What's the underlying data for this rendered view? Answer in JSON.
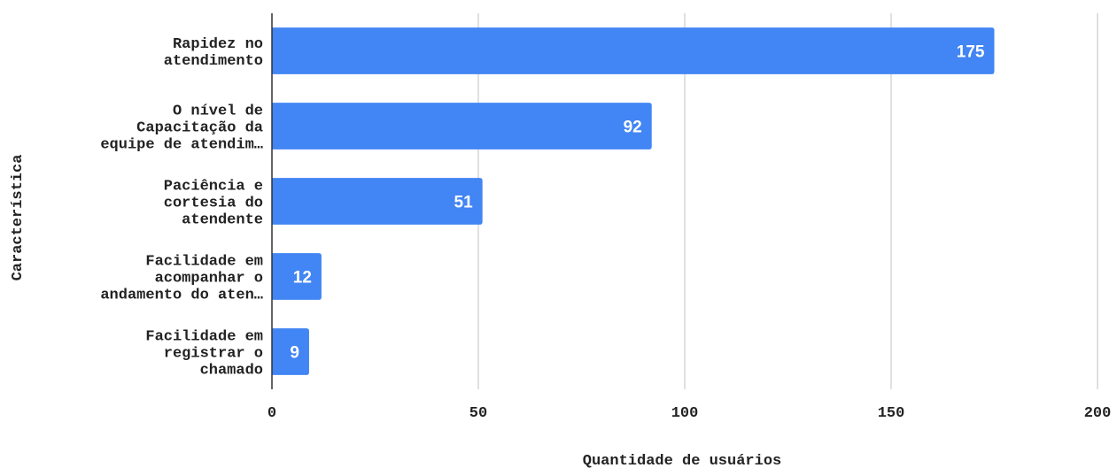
{
  "chart_data": {
    "type": "bar",
    "orientation": "horizontal",
    "categories": [
      [
        "Rapidez no",
        "atendimento"
      ],
      [
        "O nível de",
        "Capacitação da",
        "equipe de atendim…"
      ],
      [
        "Paciência e",
        "cortesia do",
        "atendente"
      ],
      [
        "Facilidade em",
        "acompanhar o",
        "andamento do aten…"
      ],
      [
        "Facilidade em",
        "registrar o",
        "chamado"
      ]
    ],
    "values": [
      175,
      92,
      51,
      12,
      9
    ],
    "value_labels": [
      "175",
      "92",
      "51",
      "12",
      "9"
    ],
    "xlabel": "Quantidade de usuários",
    "ylabel": "Característica",
    "xlim": [
      0,
      200
    ],
    "xticks": [
      "0",
      "50",
      "100",
      "150",
      "200"
    ],
    "grid": true,
    "bar_color": "#4285f4",
    "grid_color": "#cccccc",
    "axis_color": "#333333"
  }
}
